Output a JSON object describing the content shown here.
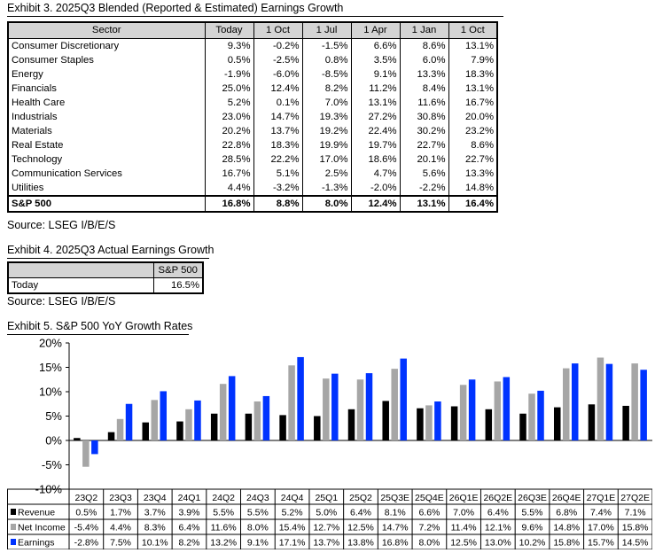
{
  "exhibit3": {
    "title": "Exhibit 3.  2025Q3 Blended (Reported & Estimated) Earnings Growth",
    "columns": [
      "Sector",
      "Today",
      "1 Oct",
      "1 Jul",
      "1 Apr",
      "1 Jan",
      "1 Oct"
    ],
    "rows": [
      [
        "Consumer Discretionary",
        "9.3%",
        "-0.2%",
        "-1.5%",
        "6.6%",
        "8.6%",
        "13.1%"
      ],
      [
        "Consumer Staples",
        "0.5%",
        "-2.5%",
        "0.8%",
        "3.5%",
        "6.0%",
        "7.9%"
      ],
      [
        "Energy",
        "-1.9%",
        "-6.0%",
        "-8.5%",
        "9.1%",
        "13.3%",
        "18.3%"
      ],
      [
        "Financials",
        "25.0%",
        "12.4%",
        "8.2%",
        "11.2%",
        "8.4%",
        "13.1%"
      ],
      [
        "Health Care",
        "5.2%",
        "0.1%",
        "7.0%",
        "13.1%",
        "11.6%",
        "16.7%"
      ],
      [
        "Industrials",
        "23.0%",
        "14.7%",
        "19.3%",
        "27.2%",
        "30.8%",
        "20.0%"
      ],
      [
        "Materials",
        "20.2%",
        "13.7%",
        "19.2%",
        "22.4%",
        "30.2%",
        "23.2%"
      ],
      [
        "Real Estate",
        "22.8%",
        "18.3%",
        "19.9%",
        "19.7%",
        "22.7%",
        "8.6%"
      ],
      [
        "Technology",
        "28.5%",
        "22.2%",
        "17.0%",
        "18.6%",
        "20.1%",
        "22.7%"
      ],
      [
        "Communication Services",
        "16.7%",
        "5.1%",
        "2.5%",
        "4.7%",
        "5.6%",
        "13.3%"
      ],
      [
        "Utilities",
        "4.4%",
        "-3.2%",
        "-1.3%",
        "-2.0%",
        "-2.2%",
        "14.8%"
      ]
    ],
    "total": [
      "S&P 500",
      "16.8%",
      "8.8%",
      "8.0%",
      "12.4%",
      "13.1%",
      "16.4%"
    ],
    "source": "Source: LSEG I/B/E/S"
  },
  "exhibit4": {
    "title": "Exhibit 4.  2025Q3 Actual Earnings Growth",
    "header": "S&P 500",
    "row_label": "Today",
    "row_value": "16.5%",
    "source": "Source: LSEG I/B/E/S"
  },
  "exhibit5": {
    "title": "Exhibit 5.  S&P 500 YoY Growth Rates"
  },
  "colors": {
    "revenue": "#000000",
    "net_income": "#a6a6a6",
    "earnings": "#0033ff",
    "header_fill": "#d4d4d4"
  },
  "chart_data": {
    "type": "bar",
    "categories": [
      "23Q2",
      "23Q3",
      "23Q4",
      "24Q1",
      "24Q2",
      "24Q3",
      "24Q4",
      "25Q1",
      "25Q2",
      "25Q3E",
      "25Q4E",
      "26Q1E",
      "26Q2E",
      "26Q3E",
      "26Q4E",
      "27Q1E",
      "27Q2E"
    ],
    "series": [
      {
        "name": "Revenue",
        "values": [
          0.5,
          1.7,
          3.7,
          3.9,
          5.5,
          5.5,
          5.2,
          5.0,
          6.4,
          8.1,
          6.6,
          7.0,
          6.4,
          5.5,
          6.8,
          7.4,
          7.1
        ]
      },
      {
        "name": "Net Income",
        "values": [
          -5.4,
          4.4,
          8.3,
          6.4,
          11.6,
          8.0,
          15.4,
          12.7,
          12.5,
          14.7,
          7.2,
          11.4,
          12.1,
          9.6,
          14.8,
          17.0,
          15.8
        ]
      },
      {
        "name": "Earnings",
        "values": [
          -2.8,
          7.5,
          10.1,
          8.2,
          13.2,
          9.1,
          17.1,
          13.7,
          13.8,
          16.8,
          8.0,
          12.5,
          13.0,
          10.2,
          15.8,
          15.7,
          14.5
        ]
      }
    ],
    "y_ticks": [
      "20%",
      "15%",
      "10%",
      "5%",
      "0%",
      "-5%",
      "-10%"
    ],
    "ylim": [
      -10,
      20
    ],
    "data_table": [
      [
        "0.5%",
        "1.7%",
        "3.7%",
        "3.9%",
        "5.5%",
        "5.5%",
        "5.2%",
        "5.0%",
        "6.4%",
        "8.1%",
        "6.6%",
        "7.0%",
        "6.4%",
        "5.5%",
        "6.8%",
        "7.4%",
        "7.1%"
      ],
      [
        "-5.4%",
        "4.4%",
        "8.3%",
        "6.4%",
        "11.6%",
        "8.0%",
        "15.4%",
        "12.7%",
        "12.5%",
        "14.7%",
        "7.2%",
        "11.4%",
        "12.1%",
        "9.6%",
        "14.8%",
        "17.0%",
        "15.8%"
      ],
      [
        "-2.8%",
        "7.5%",
        "10.1%",
        "8.2%",
        "13.2%",
        "9.1%",
        "17.1%",
        "13.7%",
        "13.8%",
        "16.8%",
        "8.0%",
        "12.5%",
        "13.0%",
        "10.2%",
        "15.8%",
        "15.7%",
        "14.5%"
      ]
    ],
    "grid": false,
    "legend": "data-table-left"
  }
}
